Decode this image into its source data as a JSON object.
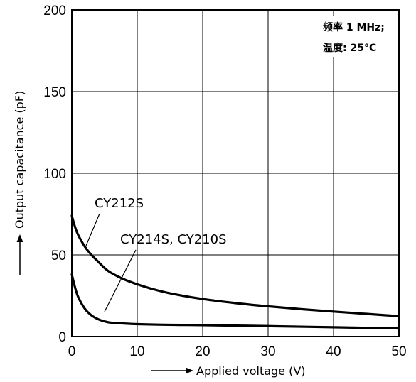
{
  "chart_data": {
    "type": "line",
    "xlabel": "Applied voltage (V)",
    "ylabel": "Output capacitance (pF)",
    "xlim": [
      0,
      50
    ],
    "ylim": [
      0,
      200
    ],
    "x_ticks": [
      "0",
      "10",
      "20",
      "30",
      "40",
      "50"
    ],
    "y_ticks": [
      "0",
      "50",
      "100",
      "150",
      "200"
    ],
    "grid": true,
    "annotations": [
      "频率 1 MHz;",
      "温度: 25°C"
    ],
    "series": [
      {
        "name": "CY212S",
        "x": [
          0,
          0.5,
          1,
          2,
          3,
          4,
          5,
          6,
          8,
          10,
          12,
          15,
          20,
          25,
          30,
          35,
          40,
          45,
          50
        ],
        "y": [
          74,
          67,
          62,
          55,
          50,
          46,
          42,
          39,
          35,
          32,
          29.5,
          26.5,
          23,
          20.5,
          18.5,
          16.8,
          15.3,
          13.9,
          12.5
        ]
      },
      {
        "name": "CY214S, CY210S",
        "x": [
          0,
          0.5,
          1,
          2,
          3,
          4,
          5,
          6,
          8,
          10,
          15,
          20,
          25,
          30,
          40,
          50
        ],
        "y": [
          38,
          30,
          24,
          17,
          13,
          10.7,
          9.3,
          8.5,
          8,
          7.6,
          7.2,
          7,
          6.7,
          6.4,
          5.7,
          5
        ]
      }
    ]
  }
}
